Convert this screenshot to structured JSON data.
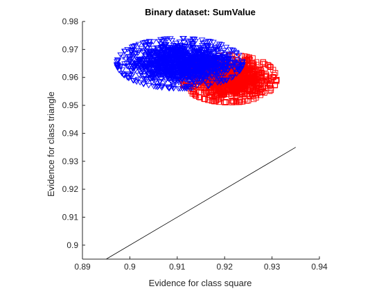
{
  "chart_data": {
    "type": "scatter",
    "title": "Binary dataset: SumValue",
    "xlabel": "Evidence for class square",
    "ylabel": "Evidence for class triangle",
    "xlim": [
      0.89,
      0.94
    ],
    "ylim": [
      0.895,
      0.98
    ],
    "xticks": [
      "0.89",
      "0.9",
      "0.91",
      "0.92",
      "0.93",
      "0.94"
    ],
    "yticks": [
      "0.9",
      "0.91",
      "0.92",
      "0.93",
      "0.94",
      "0.95",
      "0.96",
      "0.97",
      "0.98"
    ],
    "grid": false,
    "legend": "none",
    "series": [
      {
        "marker": "triangle-down",
        "color": "#0000ff",
        "cluster": {
          "x_center": 0.9105,
          "y_center": 0.965,
          "x_range": [
            0.898,
            0.9245
          ],
          "y_range": [
            0.9575,
            0.9755
          ]
        }
      },
      {
        "marker": "square",
        "color": "#ff0000",
        "cluster": {
          "x_center": 0.921,
          "y_center": 0.9595,
          "x_range": [
            0.9115,
            0.9315
          ],
          "y_range": [
            0.9515,
            0.9685
          ]
        }
      }
    ],
    "reference_line": {
      "x": [
        0.895,
        0.935
      ],
      "y": [
        0.895,
        0.935
      ],
      "color": "#000000"
    }
  }
}
